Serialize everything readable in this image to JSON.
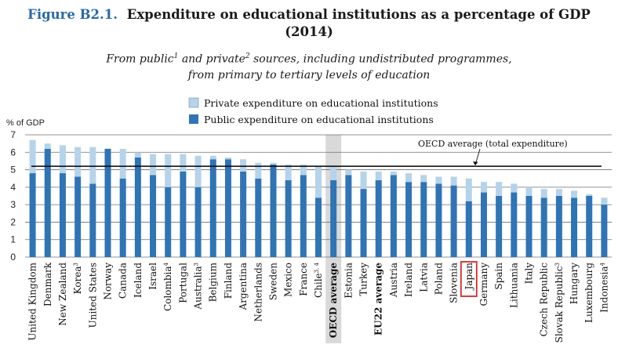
{
  "header": {
    "figure_label": "Figure B2.1.",
    "title_line1": "Expenditure on educational institutions as a percentage of GDP",
    "title_line2": "(2014)",
    "subtitle_line1_a": "From public",
    "subtitle_sup1": "1",
    "subtitle_line1_b": " and private",
    "subtitle_sup2": "2",
    "subtitle_line1_c": " sources, including undistributed programmes,",
    "subtitle_line2": "from primary to tertiary levels of education"
  },
  "colors": {
    "public": "#2f74b5",
    "private": "#b5d3ea",
    "highlight_column": "#d9d9d9",
    "japan_box": "#d62828",
    "avg_line": "#000000"
  },
  "chart_data": {
    "type": "bar",
    "stacked": true,
    "ylabel": "% of GDP",
    "ylim": [
      0,
      7
    ],
    "yticks": [
      0,
      1,
      2,
      3,
      4,
      5,
      6,
      7
    ],
    "grid": true,
    "legend": [
      "Private expenditure on educational institutions",
      "Public expenditure on educational institutions"
    ],
    "oecd_average_total": 5.2,
    "oecd_average_label": "OECD average (total expenditure)",
    "categories": [
      {
        "name": "United Kingdom",
        "sup": ""
      },
      {
        "name": "Denmark",
        "sup": ""
      },
      {
        "name": "New Zealand",
        "sup": ""
      },
      {
        "name": "Korea",
        "sup": "3"
      },
      {
        "name": "United States",
        "sup": ""
      },
      {
        "name": "Norway",
        "sup": ""
      },
      {
        "name": "Canada",
        "sup": ""
      },
      {
        "name": "Iceland",
        "sup": ""
      },
      {
        "name": "Israel",
        "sup": ""
      },
      {
        "name": "Colombia",
        "sup": "4"
      },
      {
        "name": "Portugal",
        "sup": ""
      },
      {
        "name": "Australia",
        "sup": "3"
      },
      {
        "name": "Belgium",
        "sup": ""
      },
      {
        "name": "Finland",
        "sup": ""
      },
      {
        "name": "Argentina",
        "sup": ""
      },
      {
        "name": "Netherlands",
        "sup": ""
      },
      {
        "name": "Sweden",
        "sup": ""
      },
      {
        "name": "Mexico",
        "sup": ""
      },
      {
        "name": "France",
        "sup": ""
      },
      {
        "name": "Chile",
        "sup": "3, 4"
      },
      {
        "name": "OECD average",
        "sup": "",
        "bold": true,
        "highlight": true
      },
      {
        "name": "Estonia",
        "sup": ""
      },
      {
        "name": "Turkey",
        "sup": ""
      },
      {
        "name": "EU22 average",
        "sup": "",
        "bold": true
      },
      {
        "name": "Austria",
        "sup": ""
      },
      {
        "name": "Ireland",
        "sup": ""
      },
      {
        "name": "Latvia",
        "sup": ""
      },
      {
        "name": "Poland",
        "sup": ""
      },
      {
        "name": "Slovenia",
        "sup": ""
      },
      {
        "name": "Japan",
        "sup": "",
        "boxed": true
      },
      {
        "name": "Germany",
        "sup": ""
      },
      {
        "name": "Spain",
        "sup": ""
      },
      {
        "name": "Lithuania",
        "sup": ""
      },
      {
        "name": "Italy",
        "sup": ""
      },
      {
        "name": "Czech Republic",
        "sup": ""
      },
      {
        "name": "Slovak Republic",
        "sup": "3"
      },
      {
        "name": "Hungary",
        "sup": ""
      },
      {
        "name": "Luxembourg",
        "sup": ""
      },
      {
        "name": "Indonesia",
        "sup": "4"
      }
    ],
    "series": [
      {
        "name": "Public expenditure on educational institutions",
        "values": [
          4.8,
          6.2,
          4.8,
          4.6,
          4.2,
          6.2,
          4.5,
          5.7,
          4.7,
          4.0,
          4.9,
          4.0,
          5.6,
          5.6,
          4.9,
          4.5,
          5.3,
          4.4,
          4.7,
          3.4,
          4.4,
          4.7,
          3.9,
          4.4,
          4.7,
          4.3,
          4.3,
          4.2,
          4.1,
          3.2,
          3.7,
          3.5,
          3.7,
          3.5,
          3.4,
          3.5,
          3.4,
          3.5,
          3.0
        ]
      },
      {
        "name": "Private expenditure on educational institutions",
        "values": [
          1.9,
          0.3,
          1.6,
          1.7,
          2.1,
          0.0,
          1.7,
          0.3,
          1.2,
          1.9,
          1.0,
          1.8,
          0.2,
          0.1,
          0.7,
          0.9,
          0.1,
          0.9,
          0.6,
          1.8,
          0.8,
          0.3,
          1.0,
          0.5,
          0.2,
          0.5,
          0.4,
          0.4,
          0.5,
          1.3,
          0.6,
          0.8,
          0.5,
          0.5,
          0.5,
          0.4,
          0.4,
          0.1,
          0.4
        ]
      }
    ]
  }
}
